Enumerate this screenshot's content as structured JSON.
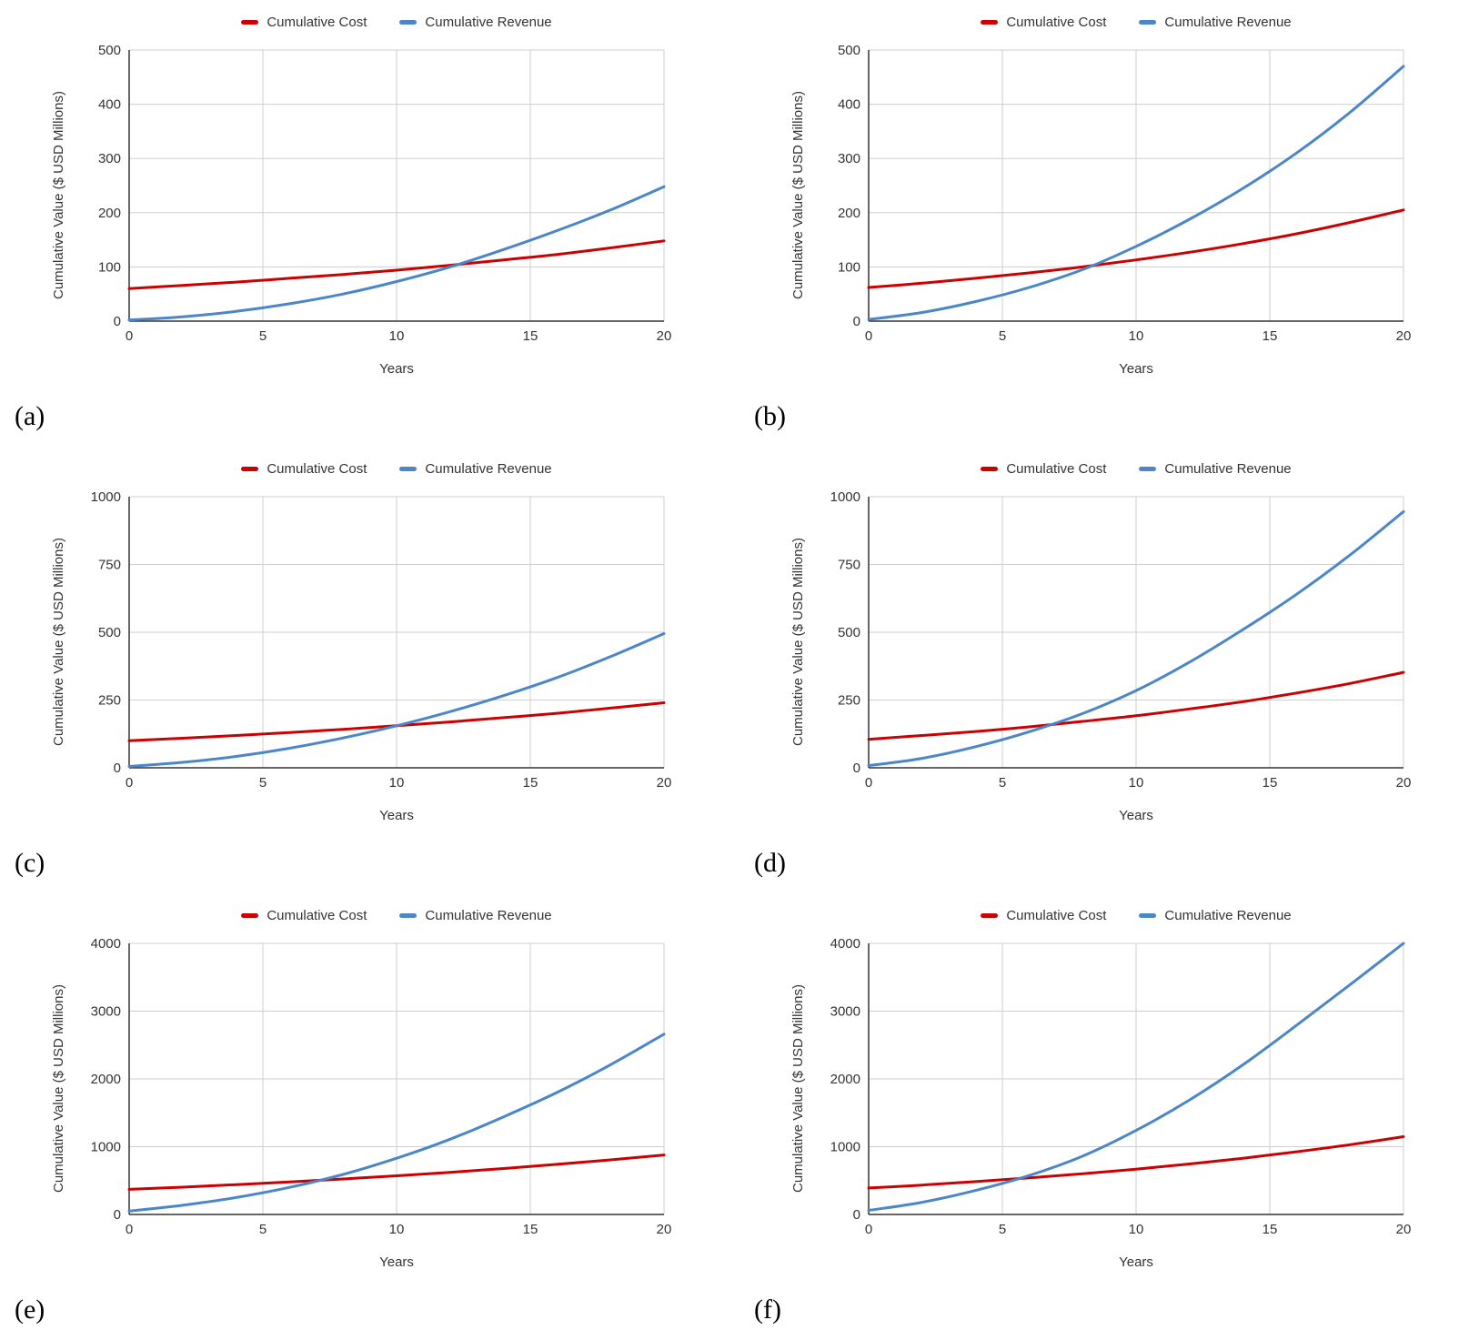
{
  "figure": {
    "xlabel": "Years",
    "ylabel": "Cumulative Value ($ USD Millions)",
    "legend": [
      "Cumulative Cost",
      "Cumulative Revenue"
    ],
    "colors": {
      "cost": "#cc0000",
      "revenue": "#4a86c8",
      "grid": "#cfcfcf",
      "axis": "#333333"
    }
  },
  "chart_data": [
    {
      "panel": "(a)",
      "type": "line",
      "xlabel": "Years",
      "ylabel": "Cumulative Value ($ USD Millions)",
      "xlim": [
        0,
        20
      ],
      "ylim": [
        0,
        500
      ],
      "xticks": [
        0,
        5,
        10,
        15,
        20
      ],
      "yticks": [
        0,
        100,
        200,
        300,
        400,
        500
      ],
      "x": [
        0,
        2,
        4,
        6,
        8,
        10,
        12,
        14,
        16,
        18,
        20
      ],
      "series": [
        {
          "name": "Cumulative Cost",
          "color": "#cc0000",
          "values": [
            60,
            66,
            72,
            79,
            86,
            94,
            103,
            113,
            123,
            135,
            148
          ]
        },
        {
          "name": "Cumulative Revenue",
          "color": "#4a86c8",
          "values": [
            2,
            8,
            18,
            32,
            50,
            73,
            100,
            132,
            167,
            205,
            248
          ]
        }
      ]
    },
    {
      "panel": "(b)",
      "type": "line",
      "xlabel": "Years",
      "ylabel": "Cumulative Value ($ USD Millions)",
      "xlim": [
        0,
        20
      ],
      "ylim": [
        0,
        500
      ],
      "xticks": [
        0,
        5,
        10,
        15,
        20
      ],
      "yticks": [
        0,
        100,
        200,
        300,
        400,
        500
      ],
      "x": [
        0,
        2,
        4,
        6,
        8,
        10,
        12,
        14,
        16,
        18,
        20
      ],
      "series": [
        {
          "name": "Cumulative Cost",
          "color": "#cc0000",
          "values": [
            62,
            70,
            79,
            89,
            100,
            113,
            127,
            143,
            161,
            182,
            205
          ]
        },
        {
          "name": "Cumulative Revenue",
          "color": "#4a86c8",
          "values": [
            3,
            16,
            36,
            62,
            95,
            138,
            188,
            245,
            310,
            385,
            470
          ]
        }
      ]
    },
    {
      "panel": "(c)",
      "type": "line",
      "xlabel": "Years",
      "ylabel": "Cumulative Value ($ USD Millions)",
      "xlim": [
        0,
        20
      ],
      "ylim": [
        0,
        1000
      ],
      "xticks": [
        0,
        5,
        10,
        15,
        20
      ],
      "yticks": [
        0,
        250,
        500,
        750,
        1000
      ],
      "x": [
        0,
        2,
        4,
        6,
        8,
        10,
        12,
        14,
        16,
        18,
        20
      ],
      "series": [
        {
          "name": "Cumulative Cost",
          "color": "#cc0000",
          "values": [
            100,
            109,
            119,
            130,
            142,
            155,
            169,
            185,
            201,
            220,
            240
          ]
        },
        {
          "name": "Cumulative Revenue",
          "color": "#4a86c8",
          "values": [
            5,
            20,
            42,
            72,
            110,
            155,
            207,
            266,
            333,
            410,
            495
          ]
        }
      ]
    },
    {
      "panel": "(d)",
      "type": "line",
      "xlabel": "Years",
      "ylabel": "Cumulative Value ($ USD Millions)",
      "xlim": [
        0,
        20
      ],
      "ylim": [
        0,
        1000
      ],
      "xticks": [
        0,
        5,
        10,
        15,
        20
      ],
      "yticks": [
        0,
        250,
        500,
        750,
        1000
      ],
      "x": [
        0,
        2,
        4,
        6,
        8,
        10,
        12,
        14,
        16,
        18,
        20
      ],
      "series": [
        {
          "name": "Cumulative Cost",
          "color": "#cc0000",
          "values": [
            105,
            119,
            134,
            151,
            171,
            192,
            217,
            244,
            276,
            311,
            352
          ]
        },
        {
          "name": "Cumulative Revenue",
          "color": "#4a86c8",
          "values": [
            8,
            35,
            78,
            133,
            200,
            285,
            390,
            510,
            640,
            785,
            945
          ]
        }
      ]
    },
    {
      "panel": "(e)",
      "type": "line",
      "xlabel": "Years",
      "ylabel": "Cumulative Value ($ USD Millions)",
      "xlim": [
        0,
        20
      ],
      "ylim": [
        0,
        4000
      ],
      "xticks": [
        0,
        5,
        10,
        15,
        20
      ],
      "yticks": [
        0,
        1000,
        2000,
        3000,
        4000
      ],
      "x": [
        0,
        2,
        4,
        6,
        8,
        10,
        12,
        14,
        16,
        18,
        20
      ],
      "series": [
        {
          "name": "Cumulative Cost",
          "color": "#cc0000",
          "values": [
            370,
            403,
            440,
            480,
            523,
            570,
            622,
            678,
            740,
            806,
            878
          ]
        },
        {
          "name": "Cumulative Revenue",
          "color": "#4a86c8",
          "values": [
            50,
            135,
            250,
            400,
            590,
            830,
            1110,
            1440,
            1800,
            2210,
            2660
          ]
        }
      ]
    },
    {
      "panel": "(f)",
      "type": "line",
      "xlabel": "Years",
      "ylabel": "Cumulative Value ($ USD Millions)",
      "xlim": [
        0,
        20
      ],
      "ylim": [
        0,
        4000
      ],
      "xticks": [
        0,
        5,
        10,
        15,
        20
      ],
      "yticks": [
        0,
        1000,
        2000,
        3000,
        4000
      ],
      "x": [
        0,
        2,
        4,
        6,
        8,
        10,
        12,
        14,
        16,
        18,
        20
      ],
      "series": [
        {
          "name": "Cumulative Cost",
          "color": "#cc0000",
          "values": [
            390,
            434,
            484,
            539,
            600,
            669,
            745,
            830,
            925,
            1030,
            1148
          ]
        },
        {
          "name": "Cumulative Revenue",
          "color": "#4a86c8",
          "values": [
            60,
            180,
            355,
            575,
            860,
            1240,
            1690,
            2210,
            2790,
            3390,
            4000
          ]
        }
      ]
    }
  ]
}
